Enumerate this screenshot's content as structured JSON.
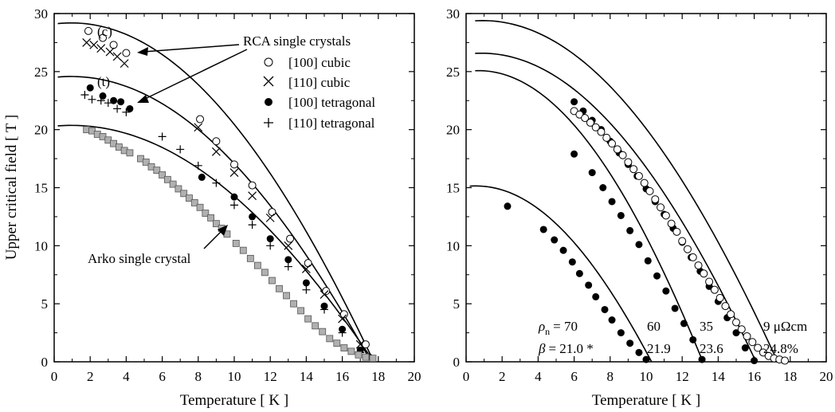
{
  "chart_data": [
    {
      "type": "scatter",
      "panel": "left",
      "xlabel": "Temperature [ K ]",
      "ylabel": "Upper critical field [ T ]",
      "xlim": [
        0,
        20
      ],
      "ylim": [
        0,
        30
      ],
      "xticks": [
        0,
        2,
        4,
        6,
        8,
        10,
        12,
        14,
        16,
        18,
        20
      ],
      "yticks": [
        0,
        5,
        10,
        15,
        20,
        25,
        30
      ],
      "legend_title": "RCA single crystals",
      "legend_placement": "top-right",
      "annotations": {
        "cubic_label": "(c)",
        "tetragonal_label": "(t)",
        "arko_label": "Arko single crystal"
      },
      "series": [
        {
          "name": "[100] cubic",
          "marker": "open-circle",
          "x": [
            1.9,
            2.7,
            3.3,
            4.0,
            8.1,
            9.0,
            10.0,
            11.0,
            12.1,
            13.1,
            14.1,
            15.1,
            16.1,
            17.3
          ],
          "y": [
            28.5,
            27.9,
            27.3,
            26.6,
            20.9,
            19.0,
            17.0,
            15.2,
            12.9,
            10.6,
            8.5,
            6.1,
            4.1,
            1.5
          ]
        },
        {
          "name": "[110] cubic",
          "marker": "cross",
          "x": [
            1.8,
            2.2,
            2.6,
            3.1,
            3.5,
            3.9,
            8.0,
            9.0,
            10.0,
            11.0,
            12.0,
            13.0,
            14.0,
            15.0,
            16.0,
            17.0
          ],
          "y": [
            27.5,
            27.3,
            27.0,
            26.7,
            26.3,
            25.7,
            20.2,
            18.1,
            16.3,
            14.3,
            12.4,
            10.0,
            8.0,
            5.8,
            3.7,
            1.5
          ]
        },
        {
          "name": "[100] tetragonal",
          "marker": "filled-circle",
          "x": [
            2.0,
            2.7,
            3.3,
            3.7,
            4.2,
            8.2,
            10.0,
            11.0,
            12.0,
            13.0,
            14.0,
            15.0,
            16.0,
            17.0,
            17.5
          ],
          "y": [
            23.6,
            22.9,
            22.5,
            22.4,
            21.8,
            15.9,
            14.2,
            12.5,
            10.6,
            8.8,
            6.8,
            4.8,
            2.8,
            1.0,
            0.4
          ]
        },
        {
          "name": "[110] tetragonal",
          "marker": "plus",
          "x": [
            1.7,
            2.1,
            2.6,
            3.0,
            3.5,
            4.0,
            6.0,
            7.0,
            8.0,
            9.0,
            10.0,
            11.0,
            12.0,
            13.0,
            14.0,
            15.0,
            16.0,
            17.0
          ],
          "y": [
            23.0,
            22.6,
            22.5,
            22.3,
            21.8,
            21.5,
            19.4,
            18.3,
            16.9,
            15.4,
            13.5,
            11.8,
            10.0,
            8.2,
            6.2,
            4.5,
            2.5,
            0.8
          ]
        },
        {
          "name": "Arko single crystal",
          "marker": "gray-square",
          "x": [
            1.8,
            2.1,
            2.4,
            2.7,
            3.0,
            3.3,
            3.6,
            3.9,
            4.2,
            4.8,
            5.1,
            5.4,
            5.7,
            6.0,
            6.3,
            6.6,
            6.9,
            7.2,
            7.5,
            7.8,
            8.1,
            8.4,
            8.7,
            9.0,
            9.3,
            9.6,
            10.1,
            10.5,
            10.9,
            11.3,
            11.7,
            12.1,
            12.5,
            12.9,
            13.3,
            13.7,
            14.1,
            14.5,
            14.9,
            15.3,
            15.7,
            16.1,
            16.5,
            16.9,
            17.3,
            17.7
          ],
          "y": [
            20.0,
            19.9,
            19.6,
            19.4,
            19.1,
            18.8,
            18.5,
            18.2,
            18.0,
            17.5,
            17.2,
            16.8,
            16.5,
            16.1,
            15.7,
            15.3,
            14.9,
            14.5,
            14.1,
            13.7,
            13.3,
            12.8,
            12.4,
            11.9,
            11.5,
            11.0,
            10.2,
            9.6,
            8.9,
            8.3,
            7.7,
            7.0,
            6.3,
            5.7,
            5.0,
            4.4,
            3.7,
            3.1,
            2.6,
            2.0,
            1.6,
            1.2,
            0.9,
            0.6,
            0.4,
            0.3
          ]
        }
      ],
      "fit_curves": [
        {
          "name": "cubic fit",
          "hc0": 29.1,
          "tc": 17.75,
          "start": 0.2
        },
        {
          "name": "tetragonal fit",
          "hc0": 24.5,
          "tc": 17.6,
          "start": 0.2
        },
        {
          "name": "arko fit",
          "hc0": 20.3,
          "tc": 17.75,
          "start": 0.2
        }
      ]
    },
    {
      "type": "scatter",
      "panel": "right",
      "xlabel": "Temperature [ K ]",
      "ylabel": "",
      "xlim": [
        0,
        20
      ],
      "ylim": [
        0,
        30
      ],
      "xticks": [
        0,
        2,
        4,
        6,
        8,
        10,
        12,
        14,
        16,
        18,
        20
      ],
      "yticks": [
        0,
        5,
        10,
        15,
        20,
        25,
        30
      ],
      "rho_label": "ρ",
      "rho_sub": "n",
      "rho_suffix": "= 70",
      "beta_label": "β",
      "beta_suffix": "= 21.0 *",
      "column_labels": [
        {
          "rho": "60",
          "beta": "21.9"
        },
        {
          "rho": "35",
          "beta": "23.6"
        },
        {
          "rho": "9 μΩcm",
          "beta": "24.8%"
        }
      ],
      "series": [
        {
          "rho": 70,
          "marker": "filled-circle",
          "x": [
            2.3,
            4.3,
            4.9,
            5.4,
            5.9,
            6.3,
            6.8,
            7.2,
            7.7,
            8.1,
            8.6,
            9.1,
            9.6,
            10.0
          ],
          "y": [
            13.4,
            11.4,
            10.5,
            9.6,
            8.6,
            7.6,
            6.6,
            5.6,
            4.5,
            3.6,
            2.5,
            1.6,
            0.8,
            0.2
          ]
        },
        {
          "rho": 60,
          "marker": "filled-circle",
          "x": [
            6.0,
            7.0,
            7.6,
            8.1,
            8.6,
            9.1,
            9.6,
            10.1,
            10.6,
            11.1,
            11.6,
            12.1,
            12.6,
            13.1
          ],
          "y": [
            17.9,
            16.3,
            15.0,
            13.8,
            12.6,
            11.3,
            10.1,
            8.7,
            7.4,
            6.1,
            4.6,
            3.3,
            1.9,
            0.2
          ]
        },
        {
          "rho": 35,
          "marker": "filled-circle",
          "x": [
            6.0,
            6.5,
            7.0,
            7.5,
            8.0,
            8.5,
            9.0,
            9.5,
            10.0,
            10.5,
            11.0,
            11.5,
            12.0,
            12.5,
            13.0,
            13.5,
            14.0,
            14.5,
            15.0,
            15.5,
            16.0
          ],
          "y": [
            22.4,
            21.6,
            20.8,
            20.0,
            19.0,
            18.0,
            17.0,
            16.0,
            14.9,
            13.8,
            12.7,
            11.5,
            10.3,
            9.0,
            7.8,
            6.5,
            5.2,
            3.8,
            2.5,
            1.2,
            0.1
          ]
        },
        {
          "rho": 9,
          "marker": "open-circle",
          "x": [
            6.0,
            6.3,
            6.6,
            6.9,
            7.2,
            7.5,
            7.8,
            8.1,
            8.4,
            8.7,
            9.0,
            9.3,
            9.6,
            9.9,
            10.2,
            10.5,
            10.8,
            11.1,
            11.4,
            11.7,
            12.0,
            12.3,
            12.6,
            12.9,
            13.2,
            13.5,
            13.8,
            14.1,
            14.4,
            14.7,
            15.0,
            15.3,
            15.6,
            15.9,
            16.2,
            16.5,
            16.8,
            17.1,
            17.4,
            17.7
          ],
          "y": [
            21.6,
            21.3,
            21.0,
            20.6,
            20.2,
            19.8,
            19.3,
            18.8,
            18.3,
            17.8,
            17.2,
            16.6,
            16.0,
            15.4,
            14.7,
            14.0,
            13.3,
            12.6,
            11.9,
            11.2,
            10.4,
            9.7,
            9.0,
            8.3,
            7.6,
            6.9,
            6.2,
            5.5,
            4.8,
            4.1,
            3.4,
            2.8,
            2.2,
            1.7,
            1.2,
            0.8,
            0.5,
            0.3,
            0.2,
            0.1
          ]
        }
      ],
      "fit_curves": [
        {
          "rho": 70,
          "hc0": 15.1,
          "tc": 10.3,
          "start": 0.2
        },
        {
          "rho": 60,
          "hc0": 25.0,
          "tc": 13.15,
          "start": 0.5
        },
        {
          "rho": 35,
          "hc0": 26.5,
          "tc": 16.1,
          "start": 0.5
        },
        {
          "rho": 9,
          "hc0": 29.3,
          "tc": 17.3,
          "start": 0.5
        }
      ]
    }
  ]
}
